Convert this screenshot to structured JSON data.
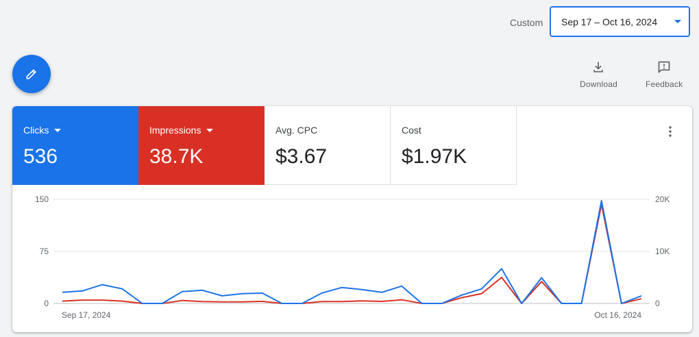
{
  "header": {
    "range_label": "Custom",
    "date_range": "Sep 17 – Oct 16, 2024"
  },
  "toolbar": {
    "download_label": "Download",
    "feedback_label": "Feedback"
  },
  "metrics": {
    "clicks": {
      "label": "Clicks",
      "value": "536",
      "color": "#1a73e8"
    },
    "impressions": {
      "label": "Impressions",
      "value": "38.7K",
      "color": "#d93025"
    },
    "avg_cpc": {
      "label": "Avg. CPC",
      "value": "$3.67"
    },
    "cost": {
      "label": "Cost",
      "value": "$1.97K"
    }
  },
  "icons": {
    "edit": "pencil-icon",
    "download": "download-icon",
    "feedback": "feedback-icon",
    "more": "more-vert-icon",
    "dropdown": "caret-down-icon"
  },
  "chart_data": {
    "type": "line",
    "x_start_label": "Sep 17, 2024",
    "x_end_label": "Oct 16, 2024",
    "y_left": {
      "ticks": [
        "0",
        "75",
        "150"
      ],
      "ylim": [
        0,
        150
      ]
    },
    "y_right": {
      "ticks": [
        "0",
        "10K",
        "20K"
      ],
      "ylim": [
        0,
        20000
      ]
    },
    "grid": true,
    "series": [
      {
        "name": "Clicks",
        "axis": "left",
        "color": "#1a73e8",
        "values": [
          16,
          18,
          27,
          21,
          0,
          0,
          17,
          19,
          11,
          14,
          15,
          0,
          0,
          15,
          23,
          20,
          16,
          25,
          0,
          0,
          12,
          21,
          50,
          0,
          37,
          0,
          0,
          148,
          0,
          11
        ]
      },
      {
        "name": "Impressions",
        "axis": "right",
        "color": "#d93025",
        "values": [
          450,
          650,
          650,
          450,
          0,
          0,
          550,
          350,
          300,
          300,
          400,
          0,
          0,
          350,
          350,
          500,
          400,
          700,
          0,
          0,
          1100,
          1900,
          5000,
          0,
          4200,
          0,
          0,
          19000,
          0,
          900
        ]
      }
    ]
  }
}
